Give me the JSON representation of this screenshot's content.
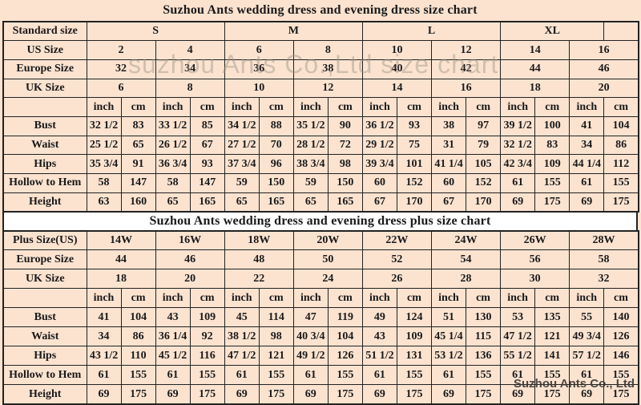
{
  "page": {
    "watermark_top": "suzhou Ants Co.,Ltd size chart",
    "watermark_bottom": "Suzhou Ants Co., Ltd"
  },
  "colors": {
    "background": "#fbe3d0",
    "border": "#222222",
    "text": "#1a1a1a",
    "title_band_bg": "#ffffff",
    "watermark_top": "#9e9286",
    "watermark_bottom": "#3a3734"
  },
  "tables": [
    {
      "title": "Suzhou Ants wedding dress and evening dress size chart",
      "rows": [
        {
          "label": "Standard size",
          "cells": [
            "S",
            "M",
            "L",
            "XL",
            ""
          ],
          "spans": [
            4,
            4,
            4,
            3,
            1
          ]
        },
        {
          "label": "US Size",
          "span": 2,
          "cells": [
            "2",
            "4",
            "6",
            "8",
            "10",
            "12",
            "14",
            "16"
          ]
        },
        {
          "label": "Europe Size",
          "span": 2,
          "cells": [
            "32",
            "34",
            "36",
            "38",
            "40",
            "42",
            "44",
            "46"
          ]
        },
        {
          "label": "UK Size",
          "span": 2,
          "cells": [
            "6",
            "8",
            "10",
            "12",
            "14",
            "16",
            "18",
            "20"
          ]
        },
        {
          "label": "",
          "cells": [
            "inch",
            "cm",
            "inch",
            "cm",
            "inch",
            "cm",
            "inch",
            "cm",
            "inch",
            "cm",
            "inch",
            "cm",
            "inch",
            "cm",
            "inch",
            "cm"
          ]
        },
        {
          "label": "Bust",
          "measure": true,
          "cells": [
            "32 1/2",
            "83",
            "33 1/2",
            "85",
            "34 1/2",
            "88",
            "35 1/2",
            "90",
            "36 1/2",
            "93",
            "38",
            "97",
            "39 1/2",
            "100",
            "41",
            "104"
          ]
        },
        {
          "label": "Waist",
          "measure": true,
          "cells": [
            "25 1/2",
            "65",
            "26 1/2",
            "67",
            "27 1/2",
            "70",
            "28 1/2",
            "72",
            "29 1/2",
            "75",
            "31",
            "79",
            "32 1/2",
            "83",
            "34",
            "86"
          ]
        },
        {
          "label": "Hips",
          "measure": true,
          "cells": [
            "35 3/4",
            "91",
            "36 3/4",
            "93",
            "37 3/4",
            "96",
            "38 3/4",
            "98",
            "39 3/4",
            "101",
            "41 1/4",
            "105",
            "42 3/4",
            "109",
            "44 1/4",
            "112"
          ]
        },
        {
          "label": "Hollow to Hem",
          "measure": true,
          "cells": [
            "58",
            "147",
            "58",
            "147",
            "59",
            "150",
            "59",
            "150",
            "60",
            "152",
            "60",
            "152",
            "61",
            "155",
            "61",
            "155"
          ]
        },
        {
          "label": "Height",
          "measure": true,
          "cells": [
            "63",
            "160",
            "65",
            "165",
            "65",
            "165",
            "65",
            "165",
            "67",
            "170",
            "67",
            "170",
            "69",
            "175",
            "69",
            "175"
          ]
        }
      ]
    },
    {
      "title": "Suzhou Ants wedding dress and evening dress plus size chart",
      "rows": [
        {
          "label": "Plus Size(US)",
          "span": 2,
          "cells": [
            "14W",
            "16W",
            "18W",
            "20W",
            "22W",
            "24W",
            "26W",
            "28W"
          ]
        },
        {
          "label": "Europe Size",
          "span": 2,
          "cells": [
            "44",
            "46",
            "48",
            "50",
            "52",
            "54",
            "56",
            "58"
          ]
        },
        {
          "label": "UK Size",
          "span": 2,
          "cells": [
            "18",
            "20",
            "22",
            "24",
            "26",
            "28",
            "30",
            "32"
          ]
        },
        {
          "label": "",
          "cells": [
            "inch",
            "cm",
            "inch",
            "cm",
            "inch",
            "cm",
            "inch",
            "cm",
            "inch",
            "cm",
            "inch",
            "cm",
            "inch",
            "cm",
            "inch",
            "cm"
          ]
        },
        {
          "label": "Bust",
          "measure": true,
          "cells": [
            "41",
            "104",
            "43",
            "109",
            "45",
            "114",
            "47",
            "119",
            "49",
            "124",
            "51",
            "130",
            "53",
            "135",
            "55",
            "140"
          ]
        },
        {
          "label": "Waist",
          "measure": true,
          "cells": [
            "34",
            "86",
            "36 1/4",
            "92",
            "38 1/2",
            "98",
            "40 3/4",
            "104",
            "43",
            "109",
            "45 1/4",
            "115",
            "47 1/2",
            "121",
            "49 3/4",
            "126"
          ]
        },
        {
          "label": "Hips",
          "measure": true,
          "cells": [
            "43 1/2",
            "110",
            "45 1/2",
            "116",
            "47 1/2",
            "121",
            "49 1/2",
            "126",
            "51 1/2",
            "131",
            "53 1/2",
            "136",
            "55 1/2",
            "141",
            "57 1/2",
            "146"
          ]
        },
        {
          "label": "Hollow to Hem",
          "measure": true,
          "cells": [
            "61",
            "155",
            "61",
            "155",
            "61",
            "155",
            "61",
            "155",
            "61",
            "155",
            "61",
            "155",
            "61",
            "155",
            "61",
            "155"
          ]
        },
        {
          "label": "Height",
          "measure": true,
          "cells": [
            "69",
            "175",
            "69",
            "175",
            "69",
            "175",
            "69",
            "175",
            "69",
            "175",
            "69",
            "175",
            "69",
            "175",
            "69",
            "175"
          ]
        }
      ]
    }
  ]
}
